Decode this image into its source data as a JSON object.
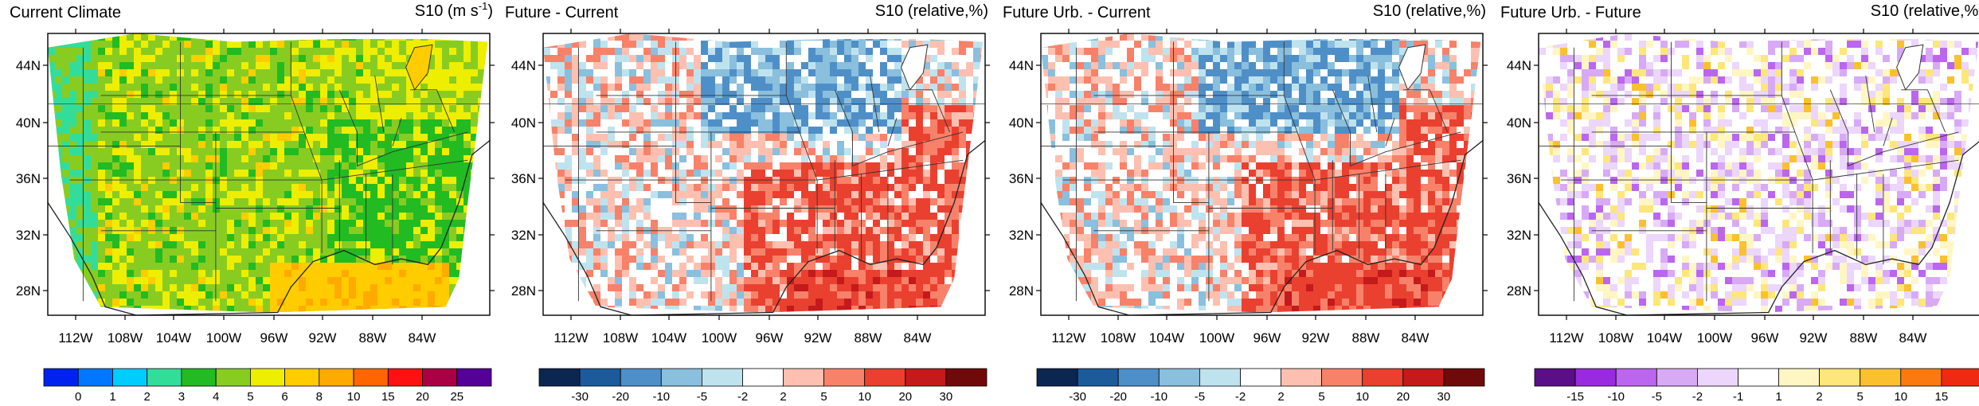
{
  "panels": [
    {
      "id": "current",
      "title": "Current Climate",
      "variable": "S10",
      "units_base": "(m s",
      "units_sup": "-1",
      "units_end": ")",
      "colorbar_labels": [
        "0",
        "1",
        "2",
        "3",
        "4",
        "5",
        "6",
        "8",
        "10",
        "15",
        "20",
        "25"
      ],
      "colorbar_colors": [
        "#0022ee",
        "#0077ff",
        "#00ccff",
        "#33dd99",
        "#22bb22",
        "#88cc22",
        "#eeee00",
        "#ffcc00",
        "#ffaa00",
        "#ff6600",
        "#ff1111",
        "#aa0044",
        "#550099"
      ]
    },
    {
      "id": "future_current",
      "title": "Future - Current",
      "variable": "S10",
      "units_base": "(relative,%)",
      "units_sup": "",
      "units_end": "",
      "colorbar_labels": [
        "-30",
        "-20",
        "-10",
        "-5",
        "-2",
        "2",
        "5",
        "10",
        "20",
        "30"
      ],
      "colorbar_colors": [
        "#0b2650",
        "#1c5a9c",
        "#4f8fc8",
        "#8abfdd",
        "#bfe3ee",
        "#ffffff",
        "#fdc0b0",
        "#f8816a",
        "#ea4030",
        "#c41a1c",
        "#700a0a"
      ]
    },
    {
      "id": "futureurb_current",
      "title": "Future Urb. - Current",
      "variable": "S10",
      "units_base": "(relative,%)",
      "units_sup": "",
      "units_end": "",
      "colorbar_labels": [
        "-30",
        "-20",
        "-10",
        "-5",
        "-2",
        "2",
        "5",
        "10",
        "20",
        "30"
      ],
      "colorbar_colors": [
        "#0b2650",
        "#1c5a9c",
        "#4f8fc8",
        "#8abfdd",
        "#bfe3ee",
        "#ffffff",
        "#fdc0b0",
        "#f8816a",
        "#ea4030",
        "#c41a1c",
        "#700a0a"
      ]
    },
    {
      "id": "futureurb_future",
      "title": "Future Urb. - Future",
      "variable": "S10",
      "units_base": "(relative,%)",
      "units_sup": "",
      "units_end": "",
      "colorbar_labels": [
        "-15",
        "-10",
        "-5",
        "-2",
        "-1",
        "1",
        "2",
        "5",
        "10",
        "15"
      ],
      "colorbar_colors": [
        "#5a0f88",
        "#9a2ae0",
        "#bb66ee",
        "#d8aaf6",
        "#ecd6fb",
        "#ffffff",
        "#fff6c4",
        "#fde67a",
        "#fbc030",
        "#fb7a10",
        "#ee2a10"
      ]
    }
  ],
  "lat_labels": [
    "44N",
    "40N",
    "36N",
    "32N",
    "28N"
  ],
  "lon_labels": [
    "112W",
    "108W",
    "104W",
    "100W",
    "96W",
    "92W",
    "88W",
    "84W"
  ]
}
